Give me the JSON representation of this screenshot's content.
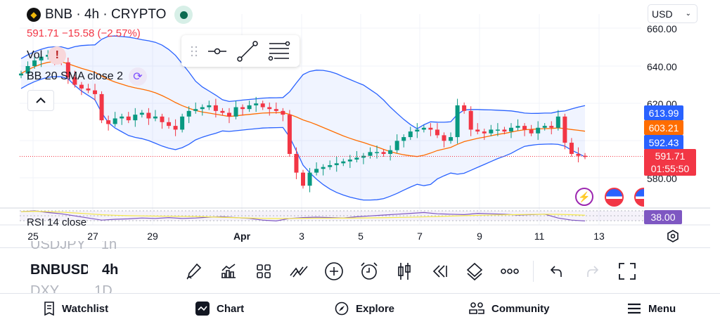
{
  "header": {
    "symbol_line": "BNB · 4h · CRYPTO",
    "change_line": "591.71  −15.58 (−2.57%)",
    "currency": "USD"
  },
  "legend": {
    "vol": "Vol",
    "bb": "BB 20 SMA close 2",
    "rsi": "RSI 14 close"
  },
  "price_axis": {
    "labels": [
      "660.00",
      "640.00",
      "620.00",
      "580.00"
    ]
  },
  "tags": {
    "upper": "613.99",
    "middle": "603.21",
    "lower": "592.43",
    "last": "591.71",
    "countdown": "01:55:50",
    "rsi": "38.00"
  },
  "time_axis": [
    "25",
    "27",
    "29",
    "Apr",
    "3",
    "5",
    "7",
    "9",
    "11",
    "13"
  ],
  "watchlist": {
    "prev_symbol": "USDJPY",
    "prev_tf": "1h",
    "symbol": "BNBUSD",
    "tf": "4h",
    "next_symbol": "DXY",
    "next_tf": "1D"
  },
  "bottom_nav": [
    "Watchlist",
    "Chart",
    "Explore",
    "Community",
    "Menu"
  ],
  "colors": {
    "up": "#089981",
    "down": "#f23645",
    "band": "#2962ff",
    "basis": "#ff6d00",
    "rsi": "#7e57c2"
  },
  "chart_data": {
    "type": "candlestick",
    "closes": [
      636,
      640,
      643,
      645,
      646,
      644,
      642,
      634,
      630,
      628,
      627,
      625,
      611,
      609,
      612,
      613,
      611,
      614,
      615,
      612,
      613,
      610,
      608,
      606,
      613,
      616,
      617,
      618,
      619,
      616,
      615,
      613,
      618,
      617,
      619,
      620,
      618,
      617,
      616,
      614,
      593,
      583,
      576,
      583,
      585,
      586,
      587,
      588,
      589,
      590,
      591,
      592,
      594,
      594,
      593,
      595,
      600,
      602,
      605,
      606,
      607,
      606,
      603,
      600,
      602,
      619,
      616,
      606,
      605,
      604,
      606,
      606,
      605,
      607,
      608,
      606,
      604,
      607,
      608,
      607,
      613,
      599,
      593,
      592,
      591.71
    ],
    "rsi": [
      60,
      62,
      58,
      55,
      50,
      45,
      40,
      42,
      43,
      45,
      44,
      46,
      44,
      45,
      47,
      48,
      46,
      44,
      40,
      38,
      44,
      46,
      47,
      46,
      45,
      48,
      50,
      52,
      54,
      56,
      58,
      55,
      54,
      53,
      56,
      55,
      54,
      52,
      53,
      54,
      45,
      40,
      38
    ],
    "price_range": [
      570,
      667
    ]
  }
}
